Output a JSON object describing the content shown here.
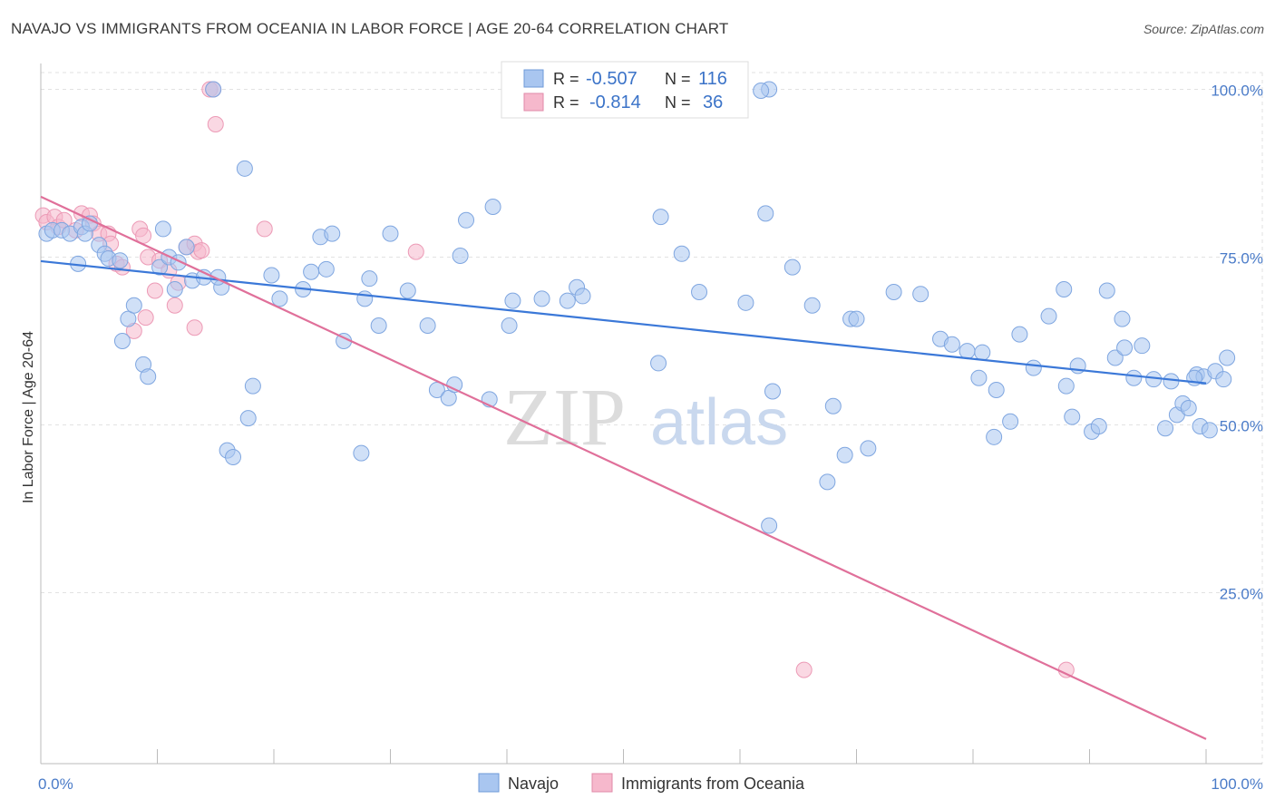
{
  "title": "NAVAJO VS IMMIGRANTS FROM OCEANIA IN LABOR FORCE | AGE 20-64 CORRELATION CHART",
  "source": "Source: ZipAtlas.com",
  "watermark": {
    "zip": "ZIP",
    "atlas": "atlas"
  },
  "colors": {
    "navajo": "#3b78d8",
    "oceania": "#e0709a",
    "navajo_fill": "#a9c6f0",
    "oceania_fill": "#f6b8cc",
    "tick": "#4a7bc8"
  },
  "legend": {
    "rows": [
      {
        "r_label": "R =",
        "r_value": "-0.507",
        "n_label": "N =",
        "n_value": "116"
      },
      {
        "r_label": "R =",
        "r_value": "-0.814",
        "n_label": "N =",
        "n_value": "36"
      }
    ]
  },
  "bottom_legend": [
    "Navajo",
    "Immigrants from Oceania"
  ],
  "chart_data": {
    "type": "scatter",
    "xlabel": "",
    "ylabel": "In Labor Force | Age 20-64",
    "xlim": [
      0,
      100
    ],
    "ylim": [
      0,
      100
    ],
    "x_tick_labels": [
      "0.0%",
      "100.0%"
    ],
    "y_tick_labels": [
      "25.0%",
      "50.0%",
      "75.0%",
      "100.0%"
    ],
    "y_ticks": [
      25,
      50,
      75,
      100
    ],
    "grid": true,
    "series": [
      {
        "name": "Navajo",
        "r": -0.507,
        "n": 116,
        "trend": [
          [
            0,
            74.4
          ],
          [
            100,
            56.2
          ]
        ],
        "points": [
          [
            0.5,
            78.5
          ],
          [
            1.0,
            79.0
          ],
          [
            1.8,
            79.0
          ],
          [
            2.5,
            78.5
          ],
          [
            3.2,
            74
          ],
          [
            3.5,
            79.5
          ],
          [
            3.8,
            78.5
          ],
          [
            4.2,
            80
          ],
          [
            5.0,
            76.8
          ],
          [
            5.5,
            75.5
          ],
          [
            5.8,
            74.8
          ],
          [
            6.8,
            74.5
          ],
          [
            7.0,
            62.5
          ],
          [
            7.5,
            65.8
          ],
          [
            8.0,
            67.8
          ],
          [
            8.8,
            59
          ],
          [
            9.2,
            57.2
          ],
          [
            10.2,
            73.5
          ],
          [
            10.5,
            79.2
          ],
          [
            11.0,
            75
          ],
          [
            11.5,
            70.2
          ],
          [
            11.8,
            74.2
          ],
          [
            12.5,
            76.5
          ],
          [
            13.0,
            71.5
          ],
          [
            14.0,
            72
          ],
          [
            14.8,
            100
          ],
          [
            15.5,
            70.5
          ],
          [
            15.2,
            72
          ],
          [
            16.0,
            46.2
          ],
          [
            16.5,
            45.2
          ],
          [
            17.5,
            88.2
          ],
          [
            17.8,
            51
          ],
          [
            18.2,
            55.8
          ],
          [
            19.8,
            72.3
          ],
          [
            20.5,
            68.8
          ],
          [
            22.5,
            70.2
          ],
          [
            23.2,
            72.8
          ],
          [
            24.0,
            78
          ],
          [
            24.5,
            73.2
          ],
          [
            25.0,
            78.5
          ],
          [
            26.0,
            62.5
          ],
          [
            27.5,
            45.8
          ],
          [
            27.8,
            68.8
          ],
          [
            28.2,
            71.8
          ],
          [
            29.0,
            64.8
          ],
          [
            30.0,
            78.5
          ],
          [
            31.5,
            70
          ],
          [
            33.2,
            64.8
          ],
          [
            34.0,
            55.2
          ],
          [
            35.0,
            54
          ],
          [
            35.5,
            56
          ],
          [
            36.0,
            75.2
          ],
          [
            36.5,
            80.5
          ],
          [
            38.5,
            53.8
          ],
          [
            38.8,
            82.5
          ],
          [
            40.2,
            64.8
          ],
          [
            40.5,
            68.5
          ],
          [
            43.0,
            68.8
          ],
          [
            45.2,
            68.5
          ],
          [
            46.0,
            70.5
          ],
          [
            46.5,
            69.2
          ],
          [
            53.0,
            59.2
          ],
          [
            53.2,
            81
          ],
          [
            55.0,
            75.5
          ],
          [
            56.5,
            69.8
          ],
          [
            60.5,
            68.2
          ],
          [
            62.5,
            100
          ],
          [
            61.8,
            99.8
          ],
          [
            62.5,
            35
          ],
          [
            62.2,
            81.5
          ],
          [
            62.8,
            55
          ],
          [
            64.5,
            73.5
          ],
          [
            66.2,
            67.8
          ],
          [
            67.5,
            41.5
          ],
          [
            68.0,
            52.8
          ],
          [
            69.0,
            45.5
          ],
          [
            69.5,
            65.8
          ],
          [
            70.0,
            65.8
          ],
          [
            71.0,
            46.5
          ],
          [
            73.2,
            69.8
          ],
          [
            75.5,
            69.5
          ],
          [
            77.2,
            62.8
          ],
          [
            78.2,
            62
          ],
          [
            79.5,
            61
          ],
          [
            80.5,
            57
          ],
          [
            81.8,
            48.2
          ],
          [
            82.0,
            55.2
          ],
          [
            84.0,
            63.5
          ],
          [
            85.2,
            58.5
          ],
          [
            86.5,
            66.2
          ],
          [
            87.8,
            70.2
          ],
          [
            88.0,
            55.8
          ],
          [
            88.5,
            51.2
          ],
          [
            89.0,
            58.8
          ],
          [
            90.2,
            49
          ],
          [
            90.8,
            49.8
          ],
          [
            91.5,
            70
          ],
          [
            92.2,
            60
          ],
          [
            92.8,
            65.8
          ],
          [
            93.0,
            61.5
          ],
          [
            93.8,
            57
          ],
          [
            94.5,
            61.8
          ],
          [
            95.5,
            56.8
          ],
          [
            96.5,
            49.5
          ],
          [
            97.0,
            56.5
          ],
          [
            97.5,
            51.5
          ],
          [
            98.0,
            53.2
          ],
          [
            98.5,
            52.5
          ],
          [
            99.2,
            57.5
          ],
          [
            99.5,
            49.8
          ],
          [
            99.8,
            57.2
          ],
          [
            100.3,
            49.2
          ],
          [
            100.8,
            58
          ],
          [
            101.5,
            56.8
          ],
          [
            101.8,
            60
          ],
          [
            99.0,
            57
          ],
          [
            83.2,
            50.5
          ],
          [
            80.8,
            60.8
          ]
        ]
      },
      {
        "name": "Immigrants from Oceania",
        "r": -0.814,
        "n": 36,
        "trend": [
          [
            0,
            84
          ],
          [
            100,
            3.2
          ]
        ],
        "points": [
          [
            0.2,
            81.2
          ],
          [
            0.5,
            80.2
          ],
          [
            1.2,
            81
          ],
          [
            1.5,
            79.5
          ],
          [
            2.0,
            80.5
          ],
          [
            3.0,
            79
          ],
          [
            3.5,
            81.5
          ],
          [
            4.2,
            81.2
          ],
          [
            4.5,
            80
          ],
          [
            5.0,
            78.5
          ],
          [
            5.8,
            78.5
          ],
          [
            6.0,
            77
          ],
          [
            6.5,
            74
          ],
          [
            7.0,
            73.5
          ],
          [
            8.0,
            64
          ],
          [
            8.5,
            79.2
          ],
          [
            8.8,
            78.2
          ],
          [
            9.0,
            66
          ],
          [
            9.2,
            75
          ],
          [
            9.8,
            70
          ],
          [
            10.2,
            74.5
          ],
          [
            11.0,
            73
          ],
          [
            11.8,
            71.2
          ],
          [
            11.5,
            67.8
          ],
          [
            12.5,
            76.5
          ],
          [
            13.2,
            77
          ],
          [
            13.5,
            75.8
          ],
          [
            13.8,
            76
          ],
          [
            13.2,
            64.5
          ],
          [
            14.5,
            100
          ],
          [
            14.8,
            100
          ],
          [
            15.0,
            94.8
          ],
          [
            19.2,
            79.2
          ],
          [
            32.2,
            75.8
          ],
          [
            65.5,
            13.5
          ],
          [
            88.0,
            13.5
          ]
        ]
      }
    ]
  }
}
